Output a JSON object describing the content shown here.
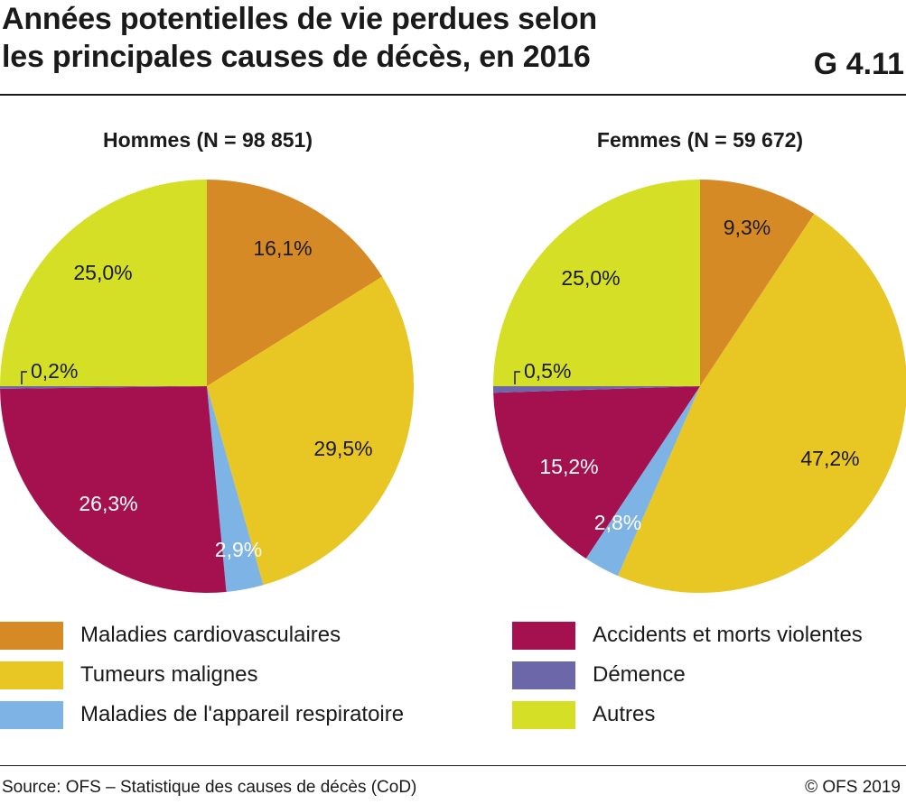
{
  "header": {
    "title_line1": "Années potentielles de vie perdues selon",
    "title_line2": "les principales causes de décès, en 2016",
    "code": "G 4.11"
  },
  "colors": {
    "Maladies cardiovasculaires": "#d68a26",
    "Tumeurs malignes": "#e8c623",
    "Maladies de l'appareil respiratoire": "#7eb3e6",
    "Accidents et morts violentes": "#a5114f",
    "Démence": "#6b67a8",
    "Autres": "#d4df26"
  },
  "chart_data": [
    {
      "type": "pie",
      "title": "Hommes (N = 98 851)",
      "slices": [
        {
          "label": "Maladies cardiovasculaires",
          "value": 16.1,
          "text": "16,1%"
        },
        {
          "label": "Tumeurs malignes",
          "value": 29.5,
          "text": "29,5%"
        },
        {
          "label": "Maladies de l'appareil respiratoire",
          "value": 2.9,
          "text": "2,9%"
        },
        {
          "label": "Accidents et morts violentes",
          "value": 26.3,
          "text": "26,3%"
        },
        {
          "label": "Démence",
          "value": 0.2,
          "text": "0,2%"
        },
        {
          "label": "Autres",
          "value": 25.0,
          "text": "25,0%"
        }
      ]
    },
    {
      "type": "pie",
      "title": "Femmes (N = 59 672)",
      "slices": [
        {
          "label": "Maladies cardiovasculaires",
          "value": 9.3,
          "text": "9,3%"
        },
        {
          "label": "Tumeurs malignes",
          "value": 47.2,
          "text": "47,2%"
        },
        {
          "label": "Maladies de l'appareil respiratoire",
          "value": 2.8,
          "text": "2,8%"
        },
        {
          "label": "Accidents et morts violentes",
          "value": 15.2,
          "text": "15,2%"
        },
        {
          "label": "Démence",
          "value": 0.5,
          "text": "0,5%"
        },
        {
          "label": "Autres",
          "value": 25.0,
          "text": "25,0%"
        }
      ]
    }
  ],
  "legend": [
    {
      "label": "Maladies cardiovasculaires",
      "color": "#d68a26"
    },
    {
      "label": "Tumeurs malignes",
      "color": "#e8c623"
    },
    {
      "label": "Maladies de l'appareil respiratoire",
      "color": "#7eb3e6"
    },
    {
      "label": "Accidents et morts violentes",
      "color": "#a5114f"
    },
    {
      "label": "Démence",
      "color": "#6b67a8"
    },
    {
      "label": "Autres",
      "color": "#d4df26"
    }
  ],
  "footer": {
    "source": "Source: OFS – Statistique des causes de décès (CoD)",
    "copyright": "© OFS 2019"
  }
}
